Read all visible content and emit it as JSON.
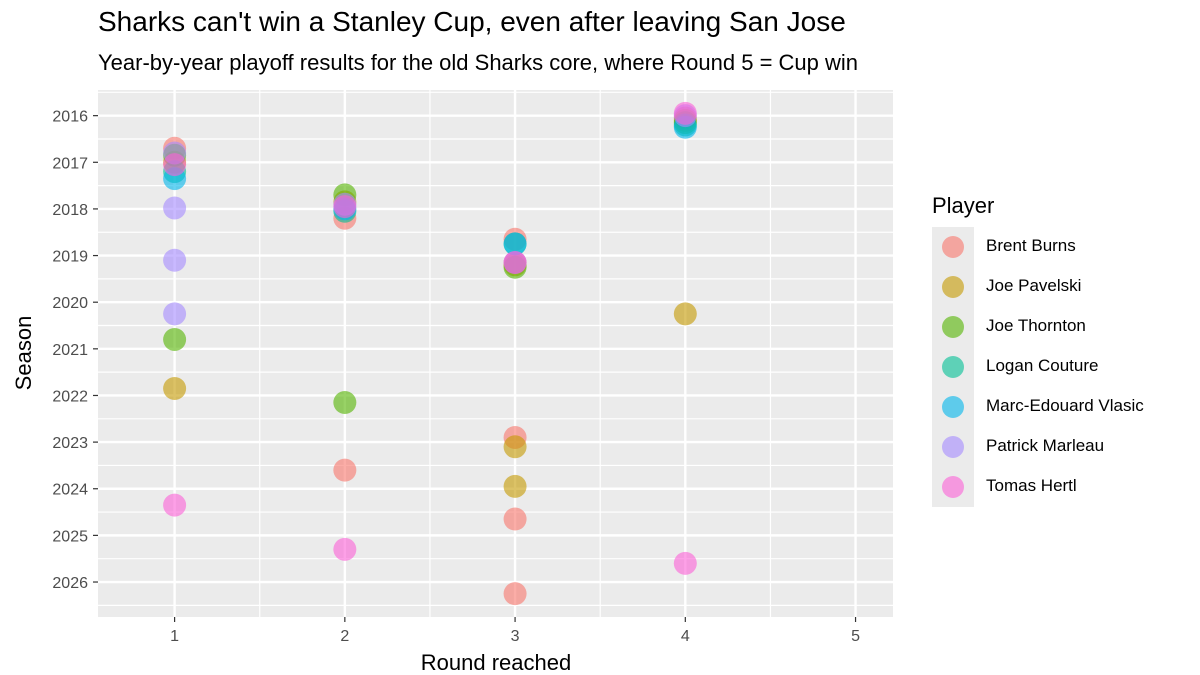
{
  "chart_data": {
    "type": "scatter",
    "title": "Sharks can't win a Stanley Cup, even after leaving San Jose",
    "subtitle": "Year-by-year playoff results for the old Sharks core, where Round 5 = Cup win",
    "xlabel": "Round reached",
    "ylabel": "Season",
    "x_ticks": [
      1,
      2,
      3,
      4,
      5
    ],
    "y_ticks": [
      2016,
      2017,
      2018,
      2019,
      2020,
      2021,
      2022,
      2023,
      2024,
      2025,
      2026
    ],
    "xlim": [
      0.55,
      5.22
    ],
    "ylim": [
      2015.45,
      2026.75
    ],
    "y_reversed": true,
    "grid": true,
    "legend": {
      "title": "Player",
      "position": "right"
    },
    "series": [
      {
        "name": "Brent Burns",
        "color": "#F8766D",
        "points": [
          [
            4,
            2016.05
          ],
          [
            1,
            2016.7
          ],
          [
            2,
            2018.2
          ],
          [
            3,
            2018.65
          ],
          [
            3,
            2019.15
          ],
          [
            3,
            2022.9
          ],
          [
            2,
            2023.6
          ],
          [
            3,
            2024.65
          ],
          [
            3,
            2026.25
          ]
        ]
      },
      {
        "name": "Joe Pavelski",
        "color": "#C49A00",
        "points": [
          [
            4,
            2016.1
          ],
          [
            1,
            2017.0
          ],
          [
            2,
            2017.85
          ],
          [
            3,
            2019.2
          ],
          [
            4,
            2020.25
          ],
          [
            1,
            2021.85
          ],
          [
            3,
            2023.1
          ],
          [
            3,
            2023.95
          ]
        ]
      },
      {
        "name": "Joe Thornton",
        "color": "#53B400",
        "points": [
          [
            4,
            2016.15
          ],
          [
            1,
            2016.85
          ],
          [
            2,
            2017.7
          ],
          [
            3,
            2019.25
          ],
          [
            1,
            2020.8
          ],
          [
            2,
            2022.15
          ]
        ]
      },
      {
        "name": "Logan Couture",
        "color": "#00C094",
        "points": [
          [
            4,
            2016.2
          ],
          [
            1,
            2017.2
          ],
          [
            2,
            2018.05
          ],
          [
            3,
            2018.75
          ]
        ]
      },
      {
        "name": "Marc-Edouard Vlasic",
        "color": "#00B6EB",
        "points": [
          [
            4,
            2016.25
          ],
          [
            1,
            2017.35
          ],
          [
            2,
            2018.0
          ],
          [
            3,
            2018.75
          ]
        ]
      },
      {
        "name": "Patrick Marleau",
        "color": "#A58AFF",
        "points": [
          [
            4,
            2016.0
          ],
          [
            1,
            2016.8
          ],
          [
            1,
            2017.98
          ],
          [
            2,
            2017.9
          ],
          [
            1,
            2019.1
          ],
          [
            3,
            2019.15
          ],
          [
            1,
            2020.25
          ]
        ]
      },
      {
        "name": "Tomas Hertl",
        "color": "#FB61D7",
        "points": [
          [
            4,
            2015.95
          ],
          [
            1,
            2017.05
          ],
          [
            2,
            2017.95
          ],
          [
            3,
            2019.15
          ],
          [
            1,
            2024.35
          ],
          [
            2,
            2025.3
          ],
          [
            4,
            2025.6
          ]
        ]
      }
    ]
  }
}
